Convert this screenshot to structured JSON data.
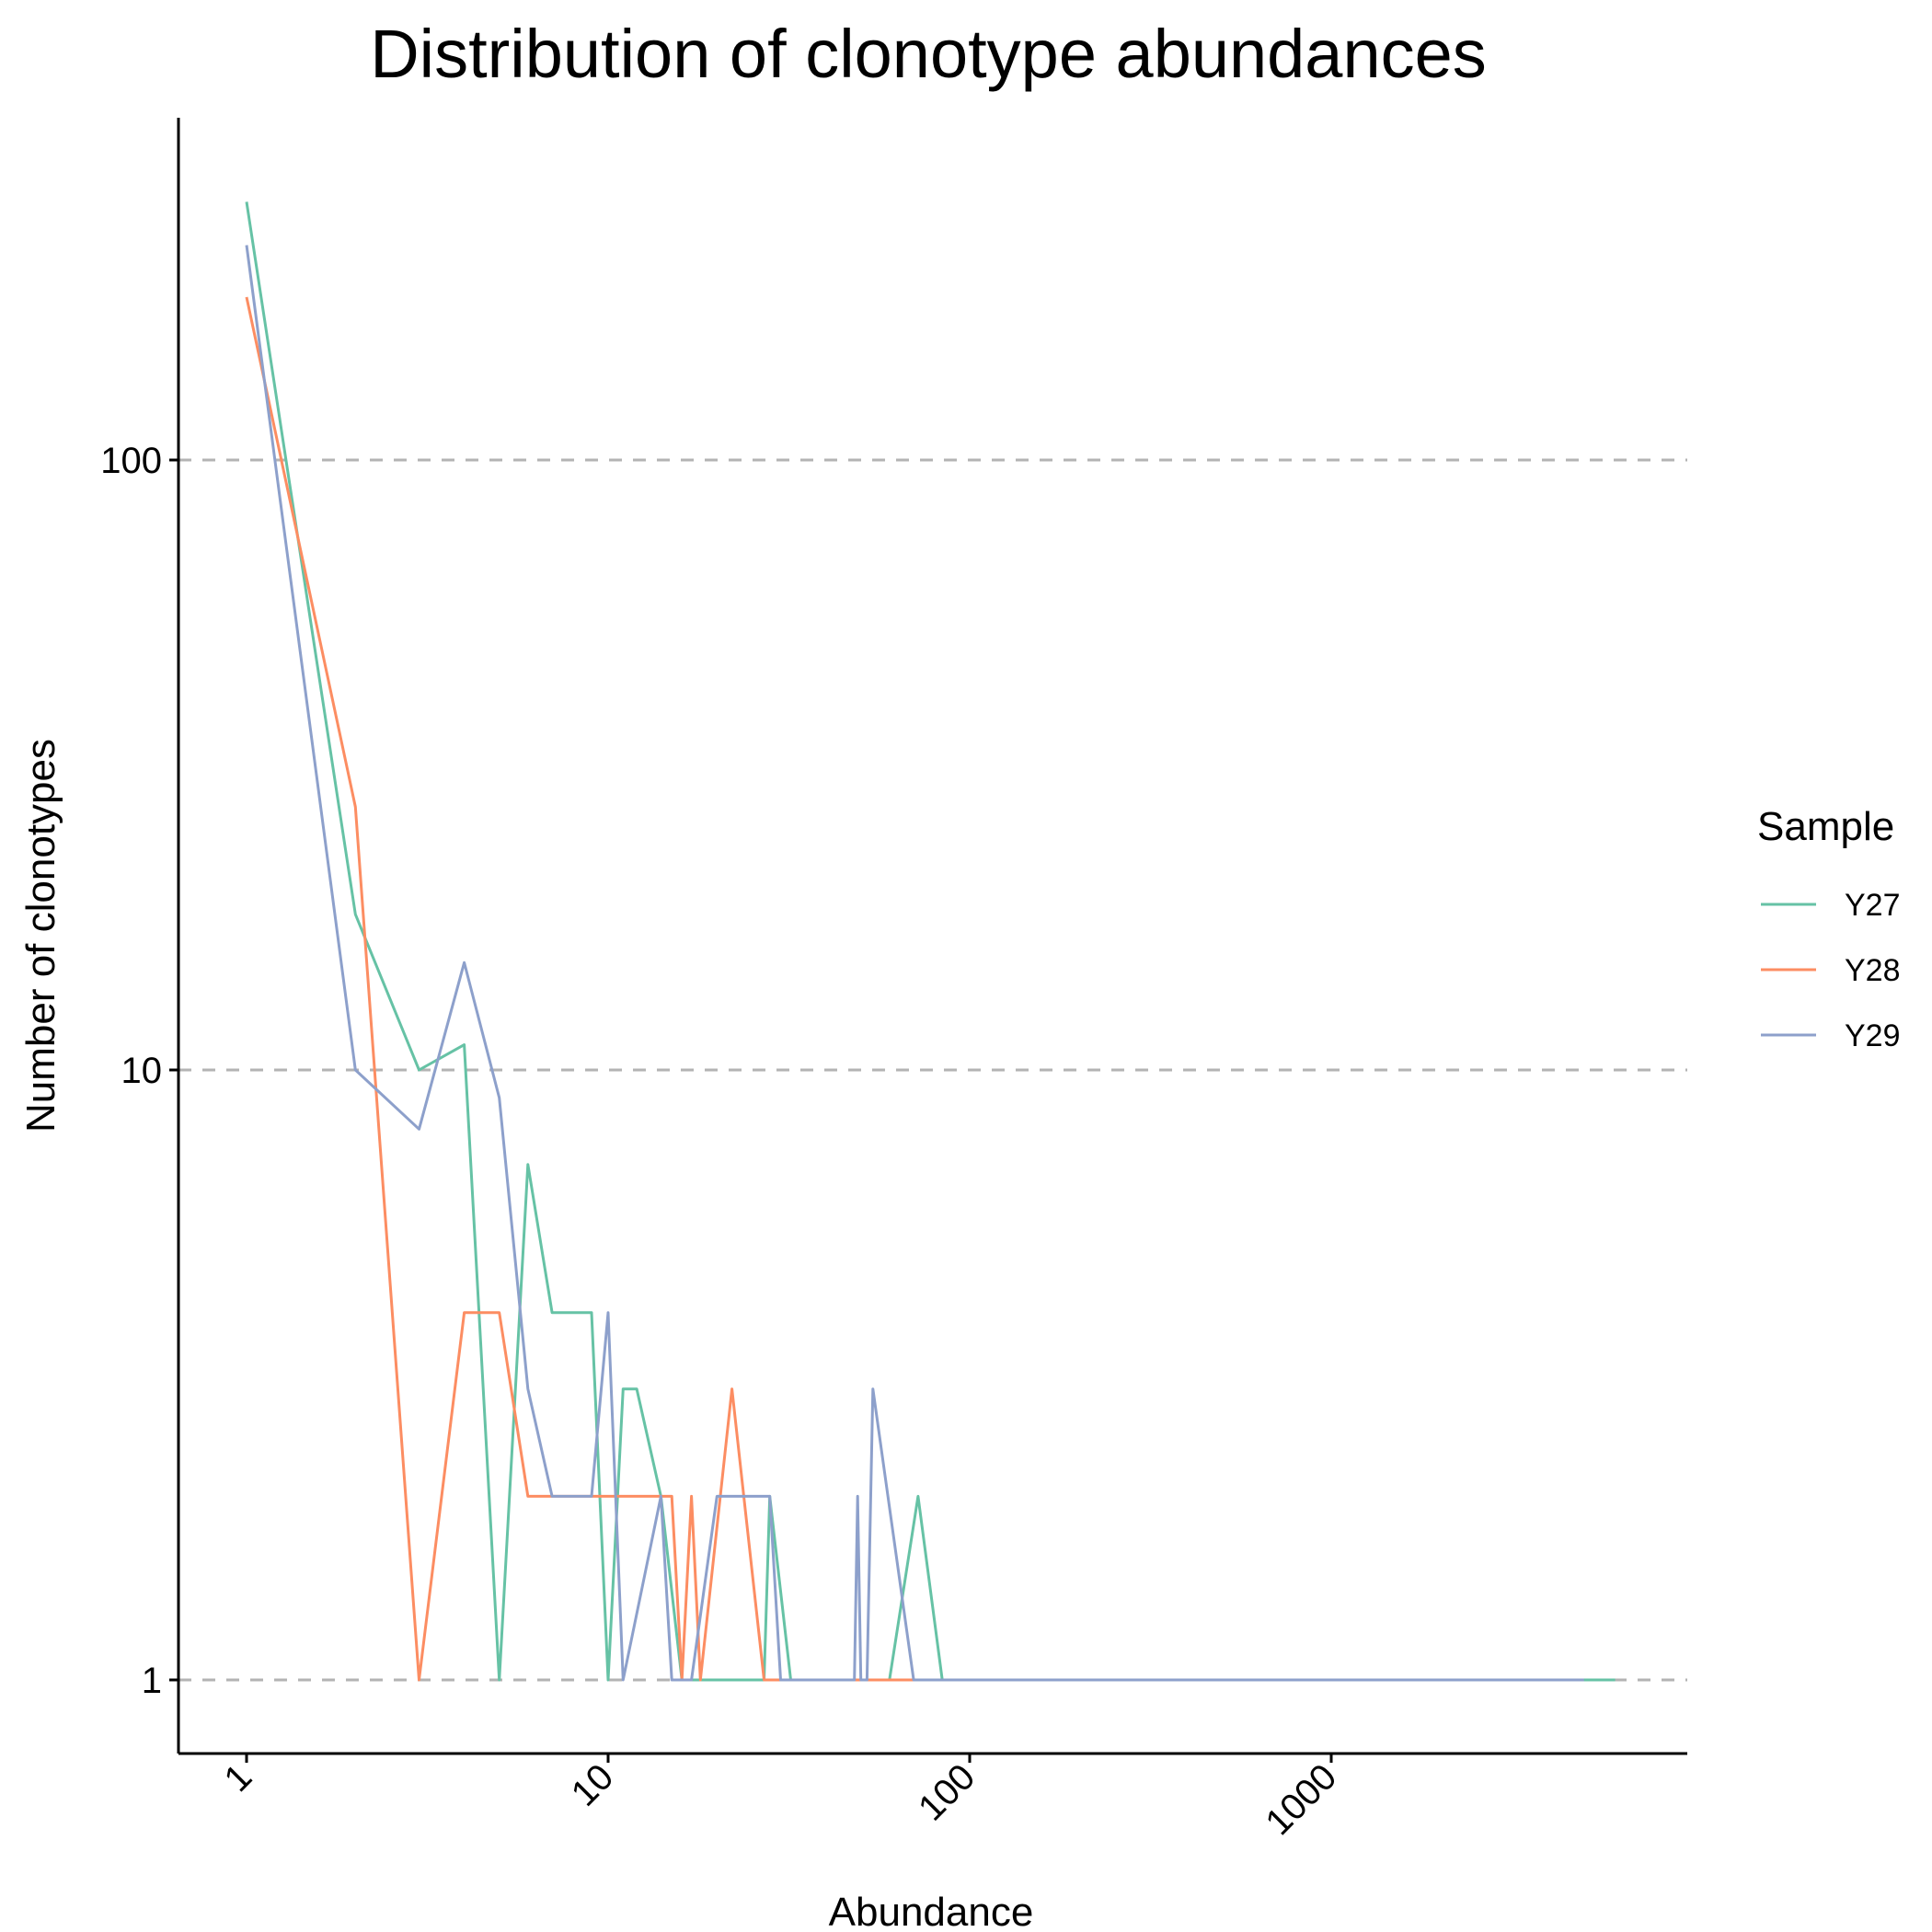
{
  "chart_data": {
    "type": "line",
    "title": "Distribution of clonotype abundances",
    "xlabel": "Abundance",
    "ylabel": "Number of clonotypes",
    "x_scale": "log10",
    "y_scale": "log10",
    "xlim": [
      0.83,
      7500
    ],
    "ylim": [
      0.77,
      330
    ],
    "x_ticks": [
      {
        "value": 1,
        "label": "1"
      },
      {
        "value": 10,
        "label": "10"
      },
      {
        "value": 100,
        "label": "100"
      },
      {
        "value": 1000,
        "label": "1000"
      }
    ],
    "y_ticks": [
      {
        "value": 1,
        "label": "1"
      },
      {
        "value": 10,
        "label": "10"
      },
      {
        "value": 100,
        "label": "100"
      }
    ],
    "grid": "horizontal dashed at major y ticks",
    "legend": {
      "title": "Sample",
      "position": "right"
    },
    "series": [
      {
        "name": "Y27",
        "color": "#66C2A5",
        "points": [
          [
            1,
            265
          ],
          [
            2,
            18
          ],
          [
            3,
            10
          ],
          [
            4,
            11
          ],
          [
            5,
            1
          ],
          [
            6,
            7
          ],
          [
            7,
            4
          ],
          [
            8,
            4
          ],
          [
            9,
            4
          ],
          [
            10,
            1
          ],
          [
            11,
            3
          ],
          [
            12,
            3
          ],
          [
            14,
            2
          ],
          [
            16,
            1
          ],
          [
            18,
            1
          ],
          [
            20,
            1
          ],
          [
            22,
            1
          ],
          [
            24,
            1
          ],
          [
            27,
            1
          ],
          [
            28,
            2
          ],
          [
            32,
            1
          ],
          [
            40,
            1
          ],
          [
            50,
            1
          ],
          [
            60,
            1
          ],
          [
            72,
            2
          ],
          [
            84,
            1
          ],
          [
            100,
            1
          ],
          [
            150,
            1
          ],
          [
            250,
            1
          ],
          [
            400,
            1
          ],
          [
            700,
            1
          ],
          [
            1200,
            1
          ],
          [
            2000,
            1
          ],
          [
            3000,
            1
          ],
          [
            4000,
            1
          ],
          [
            5000,
            1
          ],
          [
            6100,
            1
          ]
        ]
      },
      {
        "name": "Y28",
        "color": "#FC8D62",
        "points": [
          [
            1,
            185
          ],
          [
            2,
            27
          ],
          [
            3,
            1
          ],
          [
            4,
            4
          ],
          [
            5,
            4
          ],
          [
            6,
            2
          ],
          [
            7,
            2
          ],
          [
            8,
            2
          ],
          [
            9,
            2
          ],
          [
            10,
            2
          ],
          [
            11,
            2
          ],
          [
            12,
            2
          ],
          [
            13,
            2
          ],
          [
            14,
            2
          ],
          [
            15,
            2
          ],
          [
            16,
            1
          ],
          [
            17,
            2
          ],
          [
            18,
            1
          ],
          [
            22,
            3
          ],
          [
            27,
            1
          ],
          [
            30,
            1
          ],
          [
            40,
            1
          ],
          [
            50,
            1
          ],
          [
            60,
            1
          ],
          [
            72,
            1
          ]
        ]
      },
      {
        "name": "Y29",
        "color": "#8DA0CB",
        "points": [
          [
            1,
            225
          ],
          [
            2,
            10
          ],
          [
            3,
            8
          ],
          [
            4,
            15
          ],
          [
            5,
            9
          ],
          [
            6,
            3
          ],
          [
            7,
            2
          ],
          [
            8,
            2
          ],
          [
            9,
            2
          ],
          [
            10,
            4
          ],
          [
            11,
            1
          ],
          [
            14,
            2
          ],
          [
            15,
            1
          ],
          [
            16,
            1
          ],
          [
            17,
            1
          ],
          [
            20,
            2
          ],
          [
            22,
            2
          ],
          [
            24,
            2
          ],
          [
            28,
            2
          ],
          [
            30,
            1
          ],
          [
            40,
            1
          ],
          [
            48,
            1
          ],
          [
            49,
            2
          ],
          [
            50,
            1
          ],
          [
            52,
            1
          ],
          [
            54,
            3
          ],
          [
            70,
            1
          ],
          [
            100,
            1
          ],
          [
            200,
            1
          ],
          [
            500,
            1
          ],
          [
            1000,
            1
          ],
          [
            3000,
            1
          ],
          [
            5000,
            1
          ]
        ]
      }
    ]
  }
}
